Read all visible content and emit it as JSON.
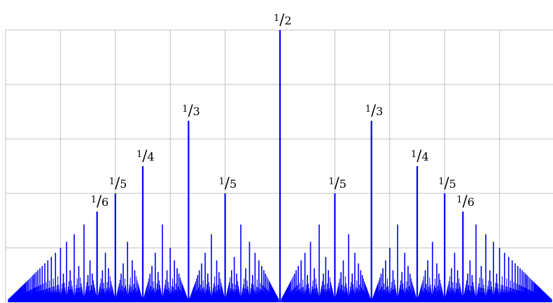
{
  "chart_data": {
    "type": "bar",
    "description_series": "Thomae-like spike plot: at each reduced fraction p/q in (0,1) a vertical line of height 1/q",
    "x_range": [
      0,
      1
    ],
    "y_range": [
      0,
      0.5
    ],
    "max_denominator": 200,
    "grid": true,
    "gridlines_x": [
      0.1,
      0.2,
      0.3,
      0.4,
      0.5,
      0.6,
      0.7,
      0.8,
      0.9
    ],
    "gridlines_y": [
      0.1,
      0.2,
      0.3,
      0.4,
      0.5
    ],
    "bar_color": "#0000ff",
    "grid_color": "#c0c0c0",
    "highlighted_values": [
      {
        "x": 0.5,
        "y": 0.5
      },
      {
        "x": 0.3333,
        "y": 0.3333
      },
      {
        "x": 0.6667,
        "y": 0.3333
      },
      {
        "x": 0.25,
        "y": 0.25
      },
      {
        "x": 0.75,
        "y": 0.25
      },
      {
        "x": 0.2,
        "y": 0.2
      },
      {
        "x": 0.4,
        "y": 0.2
      },
      {
        "x": 0.6,
        "y": 0.2
      },
      {
        "x": 0.8,
        "y": 0.2
      },
      {
        "x": 0.1667,
        "y": 0.1667
      },
      {
        "x": 0.8333,
        "y": 0.1667
      }
    ],
    "annotations": [
      {
        "x": 0.5,
        "y": 0.5,
        "num": "1",
        "den": "2"
      },
      {
        "x": 0.3333,
        "y": 0.3333,
        "num": "1",
        "den": "3"
      },
      {
        "x": 0.6667,
        "y": 0.3333,
        "num": "1",
        "den": "3"
      },
      {
        "x": 0.25,
        "y": 0.25,
        "num": "1",
        "den": "4"
      },
      {
        "x": 0.75,
        "y": 0.25,
        "num": "1",
        "den": "4"
      },
      {
        "x": 0.2,
        "y": 0.2,
        "num": "1",
        "den": "5"
      },
      {
        "x": 0.4,
        "y": 0.2,
        "num": "1",
        "den": "5"
      },
      {
        "x": 0.6,
        "y": 0.2,
        "num": "1",
        "den": "5"
      },
      {
        "x": 0.8,
        "y": 0.2,
        "num": "1",
        "den": "5"
      },
      {
        "x": 0.1667,
        "y": 0.1667,
        "num": "1",
        "den": "6"
      },
      {
        "x": 0.8333,
        "y": 0.1667,
        "num": "1",
        "den": "6"
      }
    ]
  }
}
